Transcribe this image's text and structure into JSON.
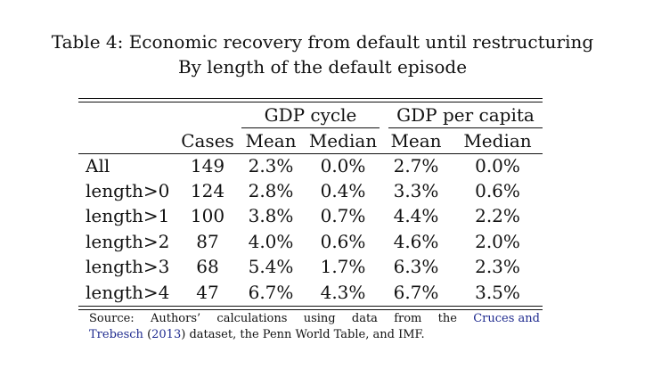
{
  "caption": {
    "line1": "Table 4: Economic recovery from default until restructuring",
    "line2": "By length of the default episode"
  },
  "table": {
    "group_headers": [
      "GDP cycle",
      "GDP per capita"
    ],
    "columns": [
      "Cases",
      "Mean",
      "Median",
      "Mean",
      "Median"
    ],
    "rows": [
      {
        "label": "All",
        "cells": [
          "149",
          "2.3%",
          "0.0%",
          "2.7%",
          "0.0%"
        ]
      },
      {
        "label": "length>0",
        "cells": [
          "124",
          "2.8%",
          "0.4%",
          "3.3%",
          "0.6%"
        ]
      },
      {
        "label": "length>1",
        "cells": [
          "100",
          "3.8%",
          "0.7%",
          "4.4%",
          "2.2%"
        ]
      },
      {
        "label": "length>2",
        "cells": [
          "87",
          "4.0%",
          "0.6%",
          "4.6%",
          "2.0%"
        ]
      },
      {
        "label": "length>3",
        "cells": [
          "68",
          "5.4%",
          "1.7%",
          "6.3%",
          "2.3%"
        ]
      },
      {
        "label": "length>4",
        "cells": [
          "47",
          "6.7%",
          "4.3%",
          "6.7%",
          "3.5%"
        ]
      }
    ]
  },
  "source": {
    "words_line1": [
      "Source:",
      "Authors’",
      "calculations",
      "using",
      "data",
      "from",
      "the"
    ],
    "link_first": "Cruces and",
    "link_second": "Trebesch",
    "year": "2013",
    "rest": "dataset, the Penn World Table, and IMF.",
    "open_paren": "(",
    "close_paren": ")"
  },
  "colors": {
    "link": "#1f2b8f",
    "text": "#111111"
  }
}
